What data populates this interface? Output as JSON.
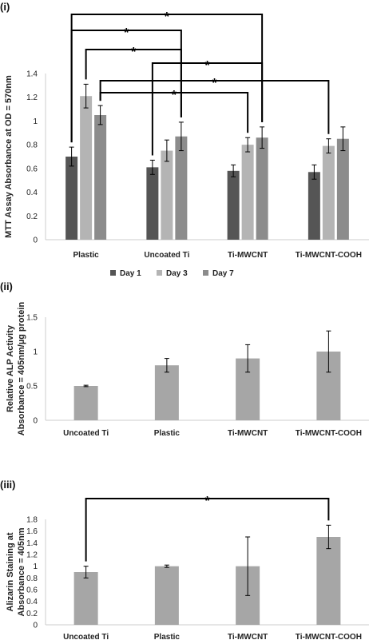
{
  "panels": [
    {
      "label": "(i)"
    },
    {
      "label": "(ii)"
    },
    {
      "label": "(iii)"
    }
  ],
  "chart_data": [
    {
      "type": "bar",
      "title": "",
      "ylabel": "MTT Assay Absorbance at OD = 570nm",
      "xlabel": "",
      "ylim": [
        0,
        1.4
      ],
      "yticks": [
        "0",
        "0.2",
        "0.4",
        "0.6",
        "0.8",
        "1",
        "1.2",
        "1.4"
      ],
      "categories": [
        "Plastic",
        "Uncoated Ti",
        "Ti-MWCNT",
        "Ti-MWCNT-COOH"
      ],
      "series": [
        {
          "name": "Day 1",
          "color": "#555555",
          "values": [
            0.7,
            0.61,
            0.58,
            0.57
          ],
          "errors": [
            0.08,
            0.06,
            0.05,
            0.06
          ]
        },
        {
          "name": "Day 3",
          "color": "#b4b4b4",
          "values": [
            1.21,
            0.75,
            0.8,
            0.79
          ],
          "errors": [
            0.1,
            0.09,
            0.06,
            0.06
          ]
        },
        {
          "name": "Day 7",
          "color": "#8c8c8c",
          "values": [
            1.05,
            0.87,
            0.86,
            0.85
          ],
          "errors": [
            0.08,
            0.12,
            0.09,
            0.1
          ]
        }
      ],
      "legend_position": "bottom",
      "significance": [
        {
          "from": {
            "category": 0,
            "series": 0
          },
          "to": {
            "category": 2,
            "series": 2
          },
          "label": "*"
        },
        {
          "from": {
            "category": 0,
            "series": 0
          },
          "to": {
            "category": 1,
            "series": 2
          },
          "label": "*"
        },
        {
          "from": {
            "category": 0,
            "series": 1
          },
          "to": {
            "category": 1,
            "series": 2
          },
          "label": "*"
        },
        {
          "from": {
            "category": 1,
            "series": 0
          },
          "to": {
            "category": 2,
            "series": 2
          },
          "label": "*"
        },
        {
          "from": {
            "category": 0,
            "series": 2
          },
          "to": {
            "category": 3,
            "series": 1
          },
          "label": "*"
        },
        {
          "from": {
            "category": 0,
            "series": 2
          },
          "to": {
            "category": 2,
            "series": 1
          },
          "label": "*"
        }
      ]
    },
    {
      "type": "bar",
      "title": "",
      "ylabel": "Relative ALP Activity Absorbance = 405nm/µg protein",
      "ylabel_lines": [
        "Relative ALP Activity",
        "Absorbance = 405nm/µg protein"
      ],
      "xlabel": "",
      "ylim": [
        0,
        1.5
      ],
      "yticks": [
        "0",
        "0.5",
        "1",
        "1.5"
      ],
      "categories": [
        "Uncoated Ti",
        "Plastic",
        "Ti-MWCNT",
        "Ti-MWCNT-COOH"
      ],
      "series": [
        {
          "color": "#a6a6a6",
          "values": [
            0.5,
            0.8,
            0.9,
            1.0
          ],
          "errors": [
            0.01,
            0.1,
            0.2,
            0.3
          ]
        }
      ]
    },
    {
      "type": "bar",
      "title": "",
      "ylabel": "Alizarin Staining at Absorbance = 405nm",
      "ylabel_lines": [
        "Alizarin Staining at",
        "Absorbance = 405nm"
      ],
      "xlabel": "",
      "ylim": [
        0,
        1.8
      ],
      "yticks": [
        "0",
        "0.2",
        "0.4",
        "0.6",
        "0.8",
        "1",
        "1.2",
        "1.4",
        "1.6",
        "1.8"
      ],
      "categories": [
        "Uncoated Ti",
        "Plastic",
        "Ti-MWCNT",
        "Ti-MWCNT-COOH"
      ],
      "series": [
        {
          "color": "#a6a6a6",
          "values": [
            0.9,
            1.0,
            1.0,
            1.5
          ],
          "errors": [
            0.1,
            0.02,
            0.5,
            0.2
          ]
        }
      ],
      "significance": [
        {
          "from": {
            "category": 0,
            "series": 0
          },
          "to": {
            "category": 3,
            "series": 0
          },
          "label": "*"
        }
      ]
    }
  ]
}
